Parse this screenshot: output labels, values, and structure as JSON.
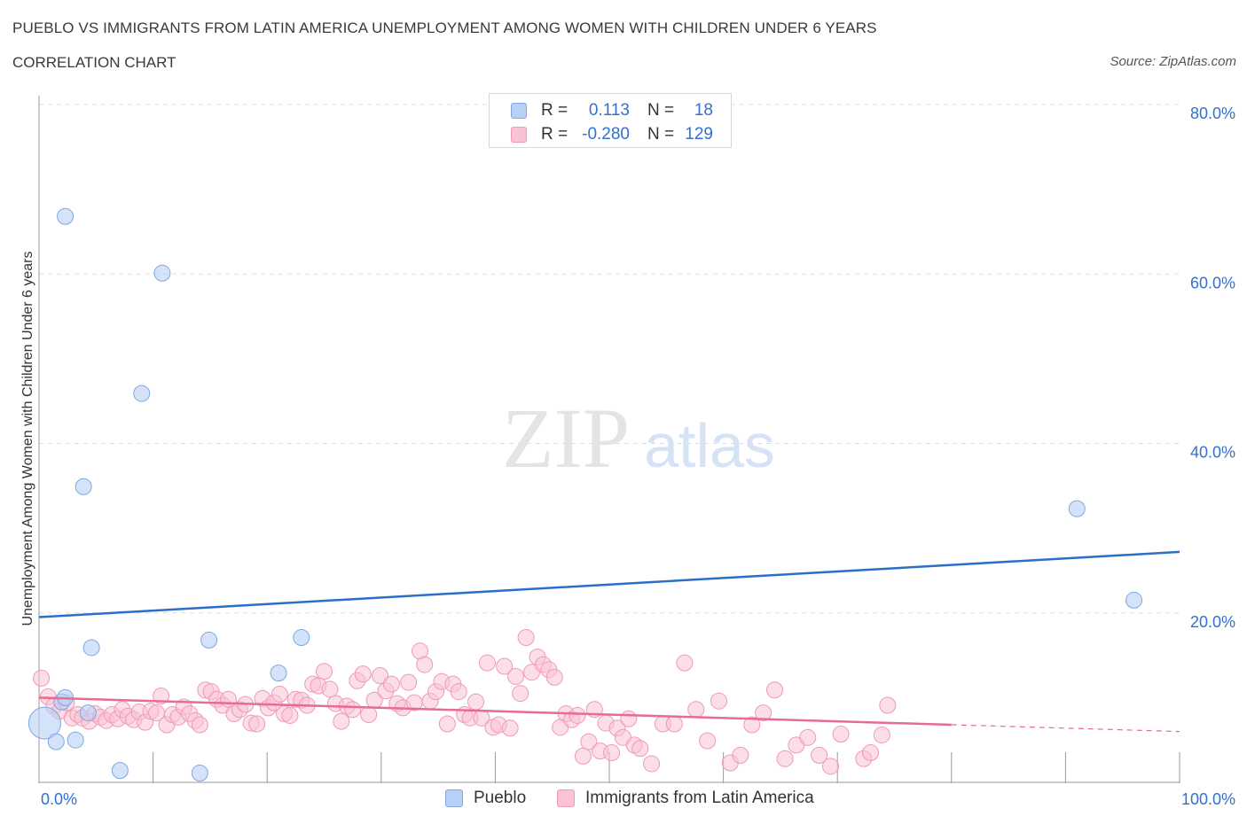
{
  "header": {
    "title": "PUEBLO VS IMMIGRANTS FROM LATIN AMERICA UNEMPLOYMENT AMONG WOMEN WITH CHILDREN UNDER 6 YEARS",
    "subtitle": "CORRELATION CHART",
    "source": "Source: ZipAtlas.com"
  },
  "watermark": {
    "zip": "ZIP",
    "atlas": "atlas"
  },
  "legend_top": {
    "rows": [
      {
        "r_label": "R =",
        "r_value": "0.113",
        "n_label": "N =",
        "n_value": "18"
      },
      {
        "r_label": "R =",
        "r_value": "-0.280",
        "n_label": "N =",
        "n_value": "129"
      }
    ]
  },
  "legend_bottom": {
    "items": [
      "Pueblo",
      "Immigrants from Latin America"
    ]
  },
  "colors": {
    "pueblo_fill": "#b8d0f5",
    "pueblo_stroke": "#7ea7e0",
    "pueblo_line": "#2a6fca",
    "latin_fill": "#f9c3d3",
    "latin_stroke": "#ef9ab5",
    "latin_line": "#e76b93",
    "tick_label": "#3370d0",
    "grid": "#dddddd"
  },
  "chart_data": {
    "type": "scatter",
    "title": "PUEBLO VS IMMIGRANTS FROM LATIN AMERICA UNEMPLOYMENT AMONG WOMEN WITH CHILDREN UNDER 6 YEARS",
    "xlabel": "",
    "ylabel": "Unemployment Among Women with Children Under 6 years",
    "xlim": [
      0,
      100
    ],
    "ylim": [
      0,
      80
    ],
    "x_tick_labels": [
      "0.0%",
      "100.0%"
    ],
    "y_ticks": [
      20,
      40,
      60,
      80
    ],
    "y_tick_labels": [
      "20.0%",
      "40.0%",
      "60.0%",
      "80.0%"
    ],
    "series": [
      {
        "name": "Pueblo",
        "R": 0.113,
        "N": 18,
        "trend": {
          "x": [
            0,
            100
          ],
          "y": [
            19.5,
            27.2
          ]
        },
        "points": [
          [
            0.5,
            7.0
          ],
          [
            1.5,
            4.8
          ],
          [
            2.0,
            9.5
          ],
          [
            2.3,
            10.0
          ],
          [
            3.2,
            5.0
          ],
          [
            4.3,
            8.2
          ],
          [
            2.3,
            66.8
          ],
          [
            3.9,
            34.9
          ],
          [
            4.6,
            15.9
          ],
          [
            7.1,
            1.4
          ],
          [
            9.0,
            45.9
          ],
          [
            10.8,
            60.1
          ],
          [
            14.1,
            1.1
          ],
          [
            14.9,
            16.8
          ],
          [
            21.0,
            12.9
          ],
          [
            23.0,
            17.1
          ],
          [
            91.0,
            32.3
          ],
          [
            96.0,
            21.5
          ]
        ]
      },
      {
        "name": "Immigrants from Latin America",
        "R": -0.28,
        "N": 129,
        "trend": {
          "x": [
            0,
            80
          ],
          "y": [
            10.0,
            6.8
          ]
        },
        "trend_dashed": {
          "x": [
            80,
            100
          ],
          "y": [
            6.8,
            6.0
          ]
        },
        "points": [
          [
            0.2,
            12.3
          ],
          [
            0.8,
            10.1
          ],
          [
            1.3,
            9.0
          ],
          [
            1.8,
            8.4
          ],
          [
            2.4,
            9.4
          ],
          [
            2.9,
            7.6
          ],
          [
            3.4,
            8.0
          ],
          [
            3.8,
            7.6
          ],
          [
            4.4,
            7.2
          ],
          [
            4.9,
            8.1
          ],
          [
            5.4,
            7.7
          ],
          [
            5.9,
            7.3
          ],
          [
            6.4,
            8.0
          ],
          [
            6.9,
            7.5
          ],
          [
            7.3,
            8.6
          ],
          [
            7.8,
            7.8
          ],
          [
            8.3,
            7.4
          ],
          [
            8.8,
            8.3
          ],
          [
            9.3,
            7.1
          ],
          [
            9.8,
            8.4
          ],
          [
            10.3,
            8.2
          ],
          [
            10.7,
            10.2
          ],
          [
            11.2,
            6.8
          ],
          [
            11.7,
            8.0
          ],
          [
            12.2,
            7.7
          ],
          [
            12.7,
            8.9
          ],
          [
            13.2,
            8.1
          ],
          [
            13.7,
            7.3
          ],
          [
            14.1,
            6.8
          ],
          [
            14.6,
            10.9
          ],
          [
            15.1,
            10.7
          ],
          [
            15.6,
            9.8
          ],
          [
            16.1,
            9.1
          ],
          [
            16.6,
            9.8
          ],
          [
            17.1,
            8.1
          ],
          [
            17.6,
            8.6
          ],
          [
            18.1,
            9.2
          ],
          [
            18.6,
            7.0
          ],
          [
            19.1,
            6.9
          ],
          [
            19.6,
            9.9
          ],
          [
            20.1,
            8.8
          ],
          [
            20.6,
            9.4
          ],
          [
            21.1,
            10.4
          ],
          [
            21.5,
            8.1
          ],
          [
            22.0,
            7.9
          ],
          [
            22.5,
            9.8
          ],
          [
            23.0,
            9.7
          ],
          [
            23.5,
            9.1
          ],
          [
            24.0,
            11.6
          ],
          [
            24.5,
            11.4
          ],
          [
            25.0,
            13.1
          ],
          [
            25.5,
            11.0
          ],
          [
            26.0,
            9.3
          ],
          [
            26.5,
            7.2
          ],
          [
            27.0,
            9.0
          ],
          [
            27.5,
            8.6
          ],
          [
            27.9,
            12.0
          ],
          [
            28.4,
            12.8
          ],
          [
            28.9,
            8.0
          ],
          [
            29.4,
            9.7
          ],
          [
            29.9,
            12.6
          ],
          [
            30.4,
            10.8
          ],
          [
            30.9,
            11.6
          ],
          [
            31.4,
            9.3
          ],
          [
            31.9,
            8.8
          ],
          [
            32.4,
            11.8
          ],
          [
            32.9,
            9.4
          ],
          [
            33.4,
            15.5
          ],
          [
            33.8,
            13.9
          ],
          [
            34.3,
            9.6
          ],
          [
            34.8,
            10.7
          ],
          [
            35.3,
            11.9
          ],
          [
            35.8,
            6.9
          ],
          [
            36.3,
            11.6
          ],
          [
            36.8,
            10.7
          ],
          [
            37.3,
            8.0
          ],
          [
            37.8,
            7.6
          ],
          [
            38.3,
            9.5
          ],
          [
            38.8,
            7.6
          ],
          [
            39.3,
            14.1
          ],
          [
            39.8,
            6.5
          ],
          [
            40.3,
            6.8
          ],
          [
            40.8,
            13.7
          ],
          [
            41.3,
            6.4
          ],
          [
            41.8,
            12.5
          ],
          [
            42.2,
            10.5
          ],
          [
            42.7,
            17.1
          ],
          [
            43.2,
            13.0
          ],
          [
            43.7,
            14.8
          ],
          [
            44.2,
            13.9
          ],
          [
            44.7,
            13.3
          ],
          [
            45.2,
            12.4
          ],
          [
            45.7,
            6.5
          ],
          [
            46.2,
            8.1
          ],
          [
            46.7,
            7.4
          ],
          [
            47.2,
            7.9
          ],
          [
            47.7,
            3.1
          ],
          [
            48.2,
            4.8
          ],
          [
            48.7,
            8.6
          ],
          [
            49.2,
            3.7
          ],
          [
            49.7,
            7.0
          ],
          [
            50.2,
            3.5
          ],
          [
            50.7,
            6.4
          ],
          [
            51.2,
            5.3
          ],
          [
            51.7,
            7.5
          ],
          [
            52.2,
            4.4
          ],
          [
            52.7,
            4.0
          ],
          [
            53.7,
            2.2
          ],
          [
            54.7,
            6.9
          ],
          [
            55.7,
            6.9
          ],
          [
            56.6,
            14.1
          ],
          [
            57.6,
            8.6
          ],
          [
            58.6,
            4.9
          ],
          [
            59.6,
            9.6
          ],
          [
            60.6,
            2.3
          ],
          [
            61.5,
            3.2
          ],
          [
            62.5,
            6.8
          ],
          [
            63.5,
            8.2
          ],
          [
            64.5,
            10.9
          ],
          [
            65.4,
            2.8
          ],
          [
            66.4,
            4.4
          ],
          [
            67.4,
            5.3
          ],
          [
            68.4,
            3.2
          ],
          [
            69.4,
            1.9
          ],
          [
            70.3,
            5.7
          ],
          [
            72.3,
            2.8
          ],
          [
            72.9,
            3.5
          ],
          [
            73.9,
            5.6
          ],
          [
            74.4,
            9.1
          ]
        ]
      }
    ]
  }
}
